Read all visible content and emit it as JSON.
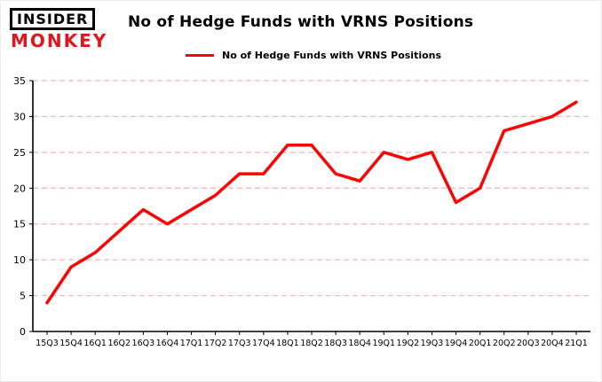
{
  "logo": {
    "line1": "INSIDER",
    "line2": "MONKEY"
  },
  "title": "No of Hedge Funds with VRNS Positions",
  "legend": {
    "label": "No of Hedge Funds with VRNS Positions"
  },
  "colors": {
    "line": "#fb0404",
    "grid": "#f4b4b4",
    "axis": "#000000",
    "text": "#000000",
    "logo_red": "#e0161d"
  },
  "chart_data": {
    "type": "line",
    "title": "No of Hedge Funds with VRNS Positions",
    "xlabel": "",
    "ylabel": "",
    "categories": [
      "15Q3",
      "15Q4",
      "16Q1",
      "16Q2",
      "16Q3",
      "16Q4",
      "17Q1",
      "17Q2",
      "17Q3",
      "17Q4",
      "18Q1",
      "18Q2",
      "18Q3",
      "18Q4",
      "19Q1",
      "19Q2",
      "19Q3",
      "19Q4",
      "20Q1",
      "20Q2",
      "20Q3",
      "20Q4",
      "21Q1"
    ],
    "series": [
      {
        "name": "No of Hedge Funds with VRNS Positions",
        "values": [
          4,
          9,
          11,
          14,
          17,
          15,
          17,
          19,
          22,
          22,
          26,
          26,
          22,
          21,
          25,
          24,
          25,
          18,
          20,
          28,
          29,
          30,
          32
        ]
      }
    ],
    "ylim": [
      0,
      35
    ],
    "yticks": [
      0,
      5,
      10,
      15,
      20,
      25,
      30,
      35
    ],
    "grid": true,
    "grid_style": "dashed",
    "legend_position": "top"
  }
}
